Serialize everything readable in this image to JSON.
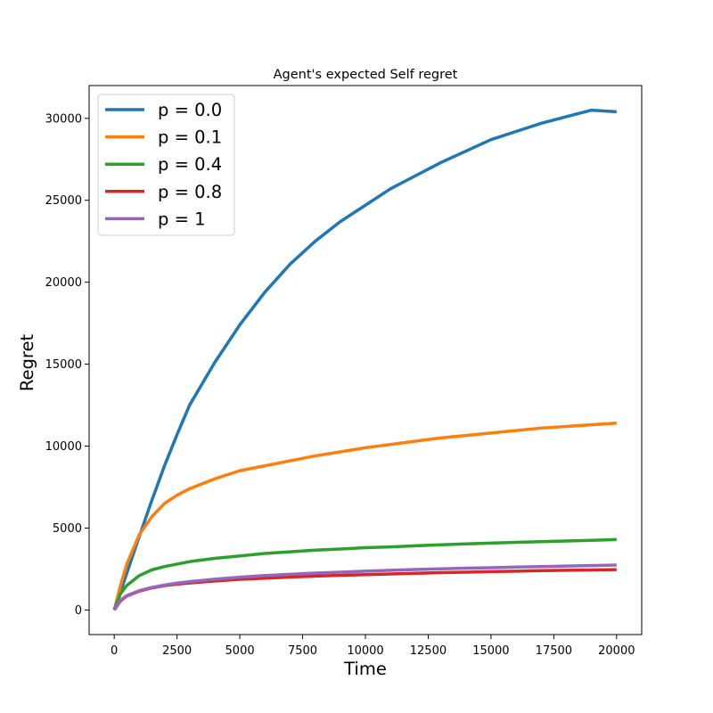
{
  "chart_data": {
    "type": "line",
    "title": "Agent's expected Self regret",
    "xlabel": "Time",
    "ylabel": "Regret",
    "xlim": [
      -1000,
      21000
    ],
    "ylim": [
      -1500,
      32000
    ],
    "xticks": [
      0,
      2500,
      5000,
      7500,
      10000,
      12500,
      15000,
      17500,
      20000
    ],
    "yticks": [
      0,
      5000,
      10000,
      15000,
      20000,
      25000,
      30000
    ],
    "xtick_labels": [
      "0",
      "2500",
      "5000",
      "7500",
      "10000",
      "12500",
      "15000",
      "17500",
      "20000"
    ],
    "ytick_labels": [
      "0",
      "5000",
      "10000",
      "15000",
      "20000",
      "25000",
      "30000"
    ],
    "grid": false,
    "legend_position": "top-left",
    "series": [
      {
        "name": "p = 0.0",
        "color": "#1f77b4",
        "x": [
          0,
          250,
          500,
          1000,
          1500,
          2000,
          2500,
          3000,
          4000,
          5000,
          6000,
          7000,
          8000,
          9000,
          10000,
          11000,
          12000,
          13000,
          14000,
          15000,
          16000,
          17000,
          18000,
          19000,
          20000
        ],
        "y": [
          0,
          1100,
          2250,
          4500,
          6700,
          8800,
          10700,
          12500,
          15100,
          17400,
          19400,
          21100,
          22500,
          23700,
          24700,
          25700,
          26500,
          27300,
          28000,
          28700,
          29200,
          29700,
          30100,
          30500,
          30400
        ]
      },
      {
        "name": "p = 0.1",
        "color": "#ff7f0e",
        "x": [
          0,
          250,
          500,
          1000,
          1500,
          2000,
          2500,
          3000,
          4000,
          5000,
          6000,
          7000,
          8000,
          9000,
          10000,
          11000,
          12000,
          13000,
          14000,
          15000,
          16000,
          17000,
          18000,
          19000,
          20000
        ],
        "y": [
          0,
          1500,
          2800,
          4600,
          5700,
          6500,
          7000,
          7400,
          8000,
          8500,
          8800,
          9100,
          9400,
          9650,
          9900,
          10100,
          10300,
          10500,
          10650,
          10800,
          10950,
          11100,
          11200,
          11300,
          11400
        ]
      },
      {
        "name": "p = 0.4",
        "color": "#2ca02c",
        "x": [
          0,
          250,
          500,
          1000,
          1500,
          2000,
          2500,
          3000,
          4000,
          5000,
          6000,
          7000,
          8000,
          9000,
          10000,
          11000,
          12000,
          13000,
          14000,
          15000,
          16000,
          17000,
          18000,
          19000,
          20000
        ],
        "y": [
          0,
          1000,
          1500,
          2100,
          2450,
          2650,
          2800,
          2950,
          3150,
          3300,
          3450,
          3550,
          3650,
          3720,
          3800,
          3850,
          3920,
          3980,
          4030,
          4080,
          4130,
          4170,
          4210,
          4250,
          4300
        ]
      },
      {
        "name": "p = 0.8",
        "color": "#d62728",
        "x": [
          0,
          250,
          500,
          1000,
          1500,
          2000,
          2500,
          3000,
          4000,
          5000,
          6000,
          7000,
          8000,
          9000,
          10000,
          11000,
          12000,
          13000,
          14000,
          15000,
          16000,
          17000,
          18000,
          19000,
          20000
        ],
        "y": [
          0,
          550,
          850,
          1150,
          1350,
          1480,
          1580,
          1650,
          1770,
          1870,
          1940,
          2010,
          2070,
          2120,
          2160,
          2200,
          2240,
          2280,
          2310,
          2340,
          2370,
          2400,
          2420,
          2440,
          2460
        ]
      },
      {
        "name": "p = 1",
        "color": "#9467bd",
        "x": [
          0,
          250,
          500,
          1000,
          1500,
          2000,
          2500,
          3000,
          4000,
          5000,
          6000,
          7000,
          8000,
          9000,
          10000,
          11000,
          12000,
          13000,
          14000,
          15000,
          16000,
          17000,
          18000,
          19000,
          20000
        ],
        "y": [
          0,
          600,
          880,
          1180,
          1380,
          1520,
          1640,
          1730,
          1880,
          2000,
          2100,
          2180,
          2250,
          2310,
          2370,
          2420,
          2470,
          2510,
          2550,
          2580,
          2620,
          2650,
          2680,
          2710,
          2740
        ]
      }
    ]
  }
}
